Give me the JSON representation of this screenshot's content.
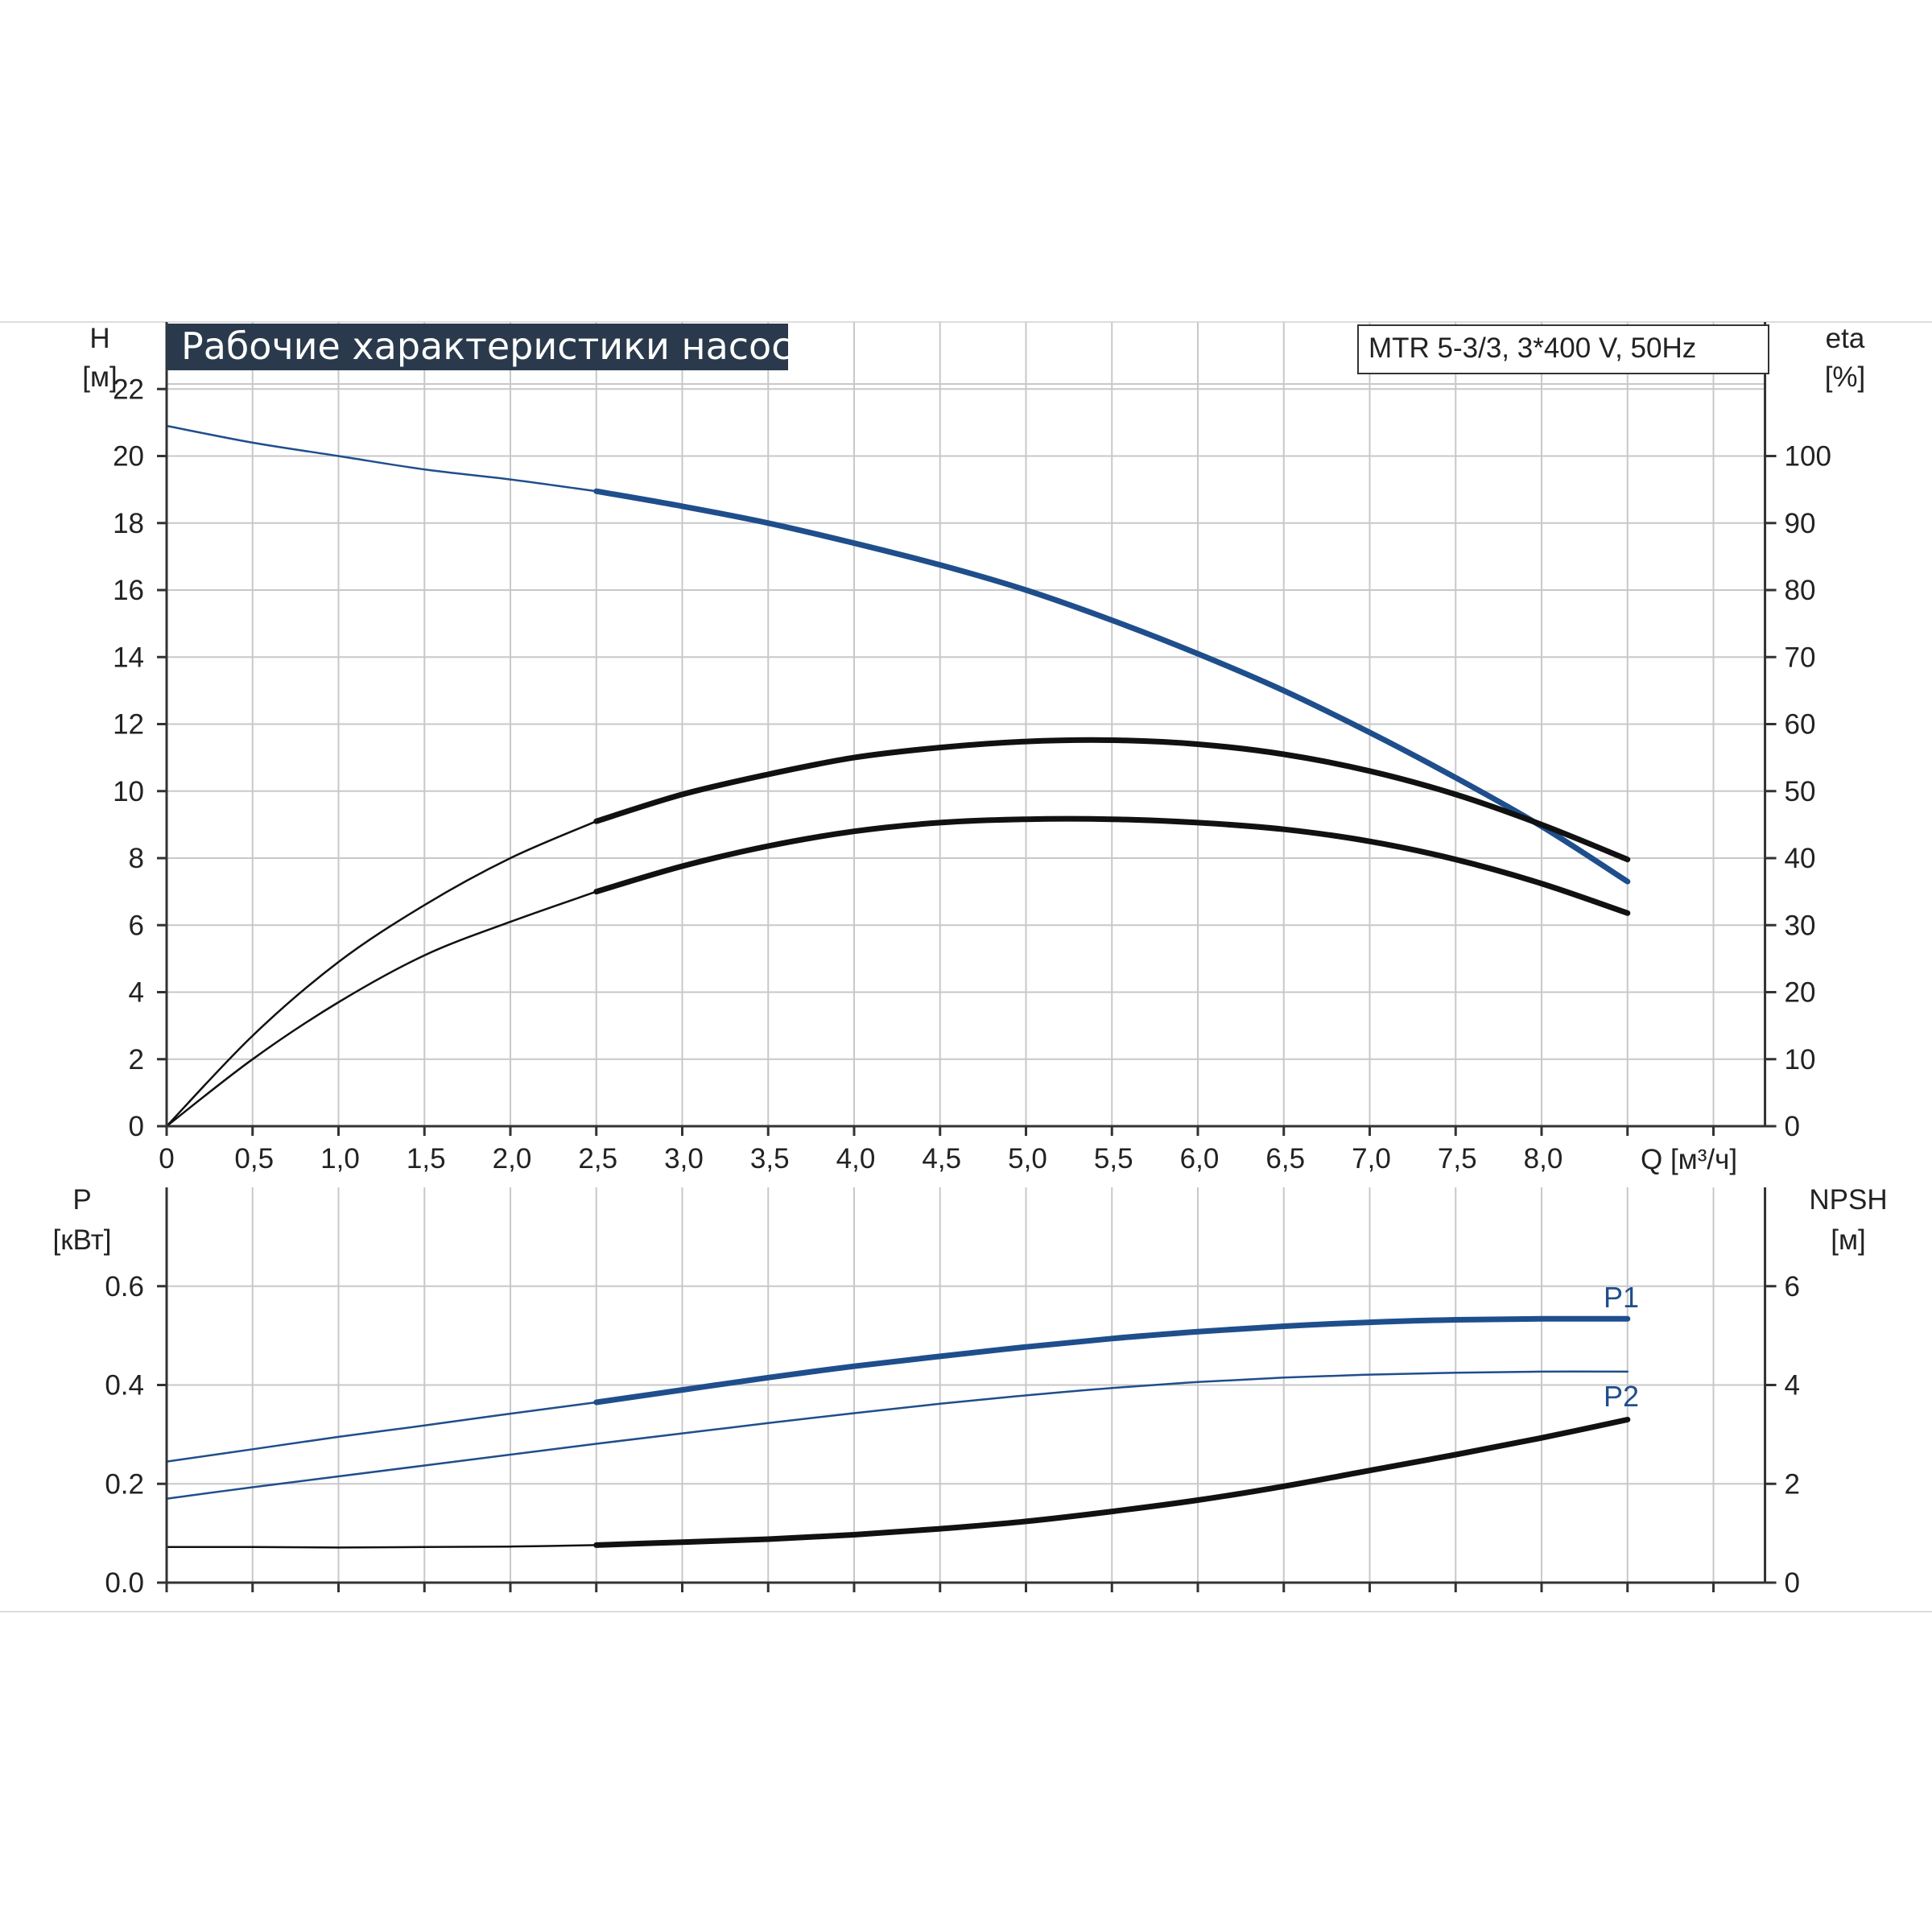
{
  "title": "Рабочие характеристики насоса",
  "model": "MTR 5-3/3, 3*400 V, 50Hz",
  "colors": {
    "blue": "#1f4e8c",
    "black": "#111111",
    "title_bg": "#2a3a4c",
    "grid": "#c8c8c8",
    "axis": "#333333"
  },
  "chart_data": [
    {
      "type": "line",
      "x_label": "Q [м³/ч]",
      "x_ticks": [
        "0",
        "0,5",
        "1,0",
        "1,5",
        "2,0",
        "2,5",
        "3,0",
        "3,5",
        "4,0",
        "4,5",
        "5,0",
        "5,5",
        "6,0",
        "6,5",
        "7,0",
        "7,5",
        "8,0"
      ],
      "x_range": [
        0,
        9.3
      ],
      "y_left_label": [
        "H",
        "[м]"
      ],
      "y_left_range": [
        0,
        24
      ],
      "y_left_ticks": [
        "0",
        "2",
        "4",
        "6",
        "8",
        "10",
        "12",
        "14",
        "16",
        "18",
        "20",
        "22"
      ],
      "y_right_label": [
        "eta",
        "[%]"
      ],
      "y_right_range": [
        0,
        120
      ],
      "y_right_ticks": [
        "0",
        "10",
        "20",
        "30",
        "40",
        "50",
        "60",
        "70",
        "80",
        "90",
        "100"
      ],
      "grid": true,
      "series": [
        {
          "id": "head-curve",
          "axis": "left",
          "color": "blue",
          "thick_from": 2.5,
          "x": [
            0,
            0.5,
            1.0,
            1.5,
            2.0,
            2.5,
            3.0,
            3.5,
            4.0,
            4.5,
            5.0,
            5.5,
            6.0,
            6.5,
            7.0,
            7.5,
            8.0,
            8.5
          ],
          "y": [
            20.9,
            20.4,
            20.0,
            19.6,
            19.3,
            18.95,
            18.5,
            18.0,
            17.4,
            16.75,
            16.0,
            15.1,
            14.1,
            13.0,
            11.75,
            10.4,
            8.95,
            7.3
          ]
        },
        {
          "id": "efficiency-curve-1",
          "axis": "right",
          "color": "black",
          "thick_from": 2.5,
          "x": [
            0,
            0.5,
            1.0,
            1.5,
            2.0,
            2.5,
            3.0,
            3.5,
            4.0,
            4.5,
            5.0,
            5.5,
            6.0,
            6.5,
            7.0,
            7.5,
            8.0,
            8.5
          ],
          "y": [
            0,
            13.5,
            24.5,
            33.0,
            40.0,
            45.5,
            49.5,
            52.5,
            55.0,
            56.5,
            57.4,
            57.6,
            57.0,
            55.5,
            53.0,
            49.5,
            45.0,
            39.8
          ]
        },
        {
          "id": "efficiency-curve-2",
          "axis": "right",
          "color": "black",
          "thick_from": 2.5,
          "x": [
            0,
            0.5,
            1.0,
            1.5,
            2.0,
            2.5,
            3.0,
            3.5,
            4.0,
            4.5,
            5.0,
            5.5,
            6.0,
            6.5,
            7.0,
            7.5,
            8.0,
            8.5
          ],
          "y": [
            0,
            10.0,
            18.5,
            25.5,
            30.5,
            35.0,
            38.8,
            41.8,
            44.0,
            45.3,
            45.8,
            45.8,
            45.3,
            44.3,
            42.5,
            39.8,
            36.2,
            31.8
          ]
        }
      ]
    },
    {
      "type": "line",
      "x_range": [
        0,
        9.3
      ],
      "y_left_label": [
        "P",
        "[кВт]"
      ],
      "y_left_range": [
        0,
        0.8
      ],
      "y_left_ticks": [
        "0.0",
        "0.2",
        "0.4",
        "0.6"
      ],
      "y_right_label": [
        "NPSH",
        "[м]"
      ],
      "y_right_range": [
        0,
        8
      ],
      "y_right_ticks": [
        "0",
        "2",
        "4",
        "6"
      ],
      "grid": true,
      "series": [
        {
          "id": "p1-curve",
          "name": "P1",
          "axis": "left",
          "color": "blue",
          "thick_from": 2.5,
          "x": [
            0,
            0.5,
            1.0,
            1.5,
            2.0,
            2.5,
            3.0,
            3.5,
            4.0,
            4.5,
            5.0,
            5.5,
            6.0,
            6.5,
            7.0,
            7.5,
            8.0,
            8.5
          ],
          "y": [
            0.245,
            0.27,
            0.295,
            0.318,
            0.342,
            0.365,
            0.39,
            0.415,
            0.438,
            0.458,
            0.477,
            0.494,
            0.508,
            0.519,
            0.527,
            0.532,
            0.534,
            0.534
          ]
        },
        {
          "id": "p2-curve",
          "name": "P2",
          "axis": "left",
          "color": "blue",
          "thick_from": 99,
          "x": [
            0,
            0.5,
            1.0,
            1.5,
            2.0,
            2.5,
            3.0,
            3.5,
            4.0,
            4.5,
            5.0,
            5.5,
            6.0,
            6.5,
            7.0,
            7.5,
            8.0,
            8.5
          ],
          "y": [
            0.17,
            0.193,
            0.215,
            0.237,
            0.259,
            0.281,
            0.302,
            0.323,
            0.343,
            0.362,
            0.379,
            0.394,
            0.406,
            0.415,
            0.421,
            0.425,
            0.427,
            0.427
          ]
        },
        {
          "id": "npsh-curve",
          "axis": "right",
          "color": "black",
          "thick_from": 2.5,
          "x": [
            0,
            0.5,
            1.0,
            1.5,
            2.0,
            2.5,
            3.0,
            3.5,
            4.0,
            4.5,
            5.0,
            5.5,
            6.0,
            6.5,
            7.0,
            7.5,
            8.0,
            8.5
          ],
          "y": [
            0.72,
            0.72,
            0.71,
            0.72,
            0.73,
            0.76,
            0.82,
            0.88,
            0.97,
            1.09,
            1.24,
            1.44,
            1.67,
            1.95,
            2.27,
            2.59,
            2.93,
            3.3
          ]
        }
      ]
    }
  ]
}
